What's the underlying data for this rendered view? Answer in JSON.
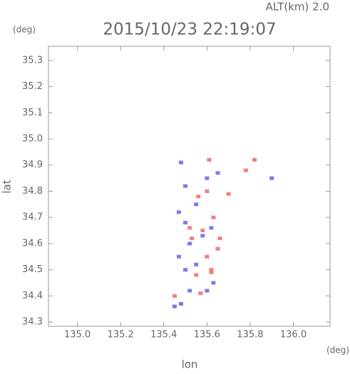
{
  "chart_data": {
    "type": "scatter",
    "title": "2015/10/23 22:19:07",
    "annotation": "ALT(km) 2.0",
    "y_unit": "(deg)",
    "x_unit": "(deg)",
    "x_label": "lon",
    "y_label": "lat",
    "xlim": [
      134.866,
      136.17
    ],
    "ylim": [
      34.284,
      35.354
    ],
    "xticks": [
      {
        "value": 135.0,
        "label": "135.0"
      },
      135.2,
      135.4,
      135.6,
      135.8,
      {
        "value": 136.0,
        "label": "136.0"
      }
    ],
    "yticks": [
      35.3,
      35.2,
      35.1,
      {
        "value": 35.0,
        "label": "35.0"
      },
      34.9,
      34.8,
      34.7,
      34.6,
      34.5,
      34.4,
      34.3
    ],
    "series": [
      {
        "color": "#7a7af0",
        "x": [
          135.45,
          135.48,
          135.52,
          135.6,
          135.63,
          135.5,
          135.55,
          135.47,
          135.52,
          135.58,
          135.62,
          135.5,
          135.47,
          135.55,
          135.5,
          135.6,
          135.65,
          135.48,
          135.9
        ],
        "values": [
          34.36,
          34.37,
          34.42,
          34.42,
          34.45,
          34.5,
          34.52,
          34.55,
          34.6,
          34.63,
          34.66,
          34.68,
          34.72,
          34.75,
          34.82,
          34.85,
          34.87,
          34.91,
          34.85
        ]
      },
      {
        "color": "#f08080",
        "x": [
          135.57,
          135.62,
          135.55,
          135.6,
          135.65,
          135.53,
          135.63,
          135.58,
          135.45,
          135.52,
          135.6,
          135.56,
          135.7,
          135.82,
          135.61,
          135.78,
          135.62,
          135.66
        ],
        "values": [
          34.41,
          34.49,
          34.48,
          34.55,
          34.58,
          34.62,
          34.7,
          34.65,
          34.4,
          34.66,
          34.8,
          34.78,
          34.79,
          34.92,
          34.92,
          34.88,
          34.5,
          34.62
        ]
      }
    ]
  }
}
